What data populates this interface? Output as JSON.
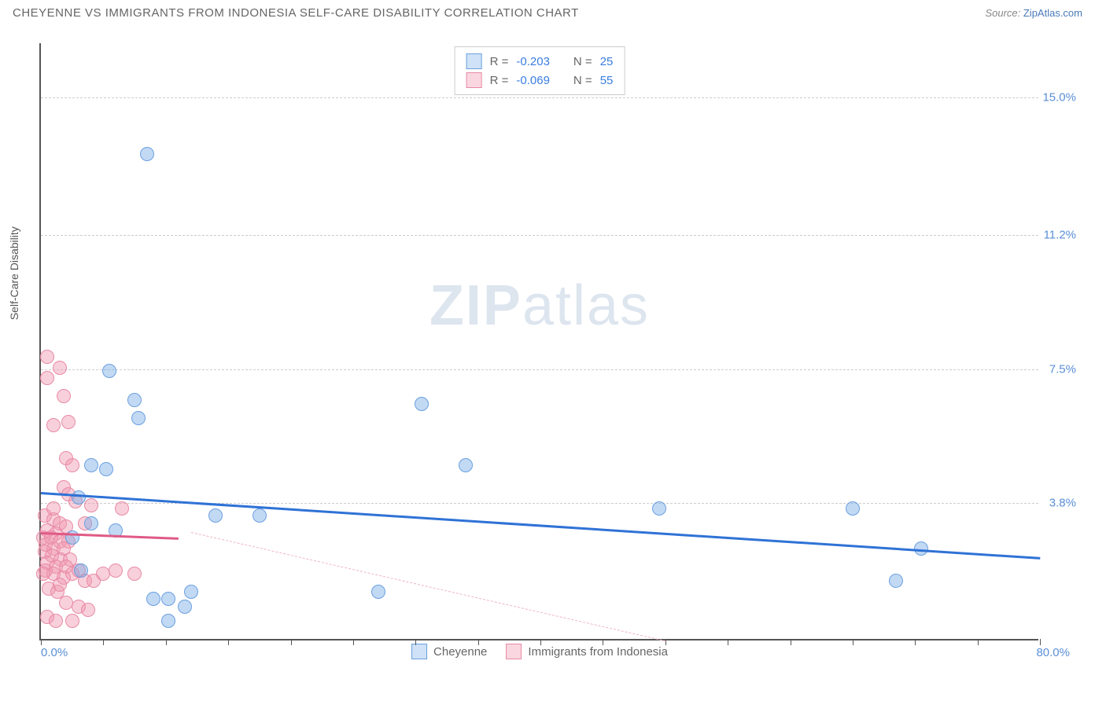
{
  "header": {
    "title": "CHEYENNE VS IMMIGRANTS FROM INDONESIA SELF-CARE DISABILITY CORRELATION CHART",
    "source_prefix": "Source: ",
    "source_link": "ZipAtlas.com"
  },
  "watermark": {
    "zip": "ZIP",
    "atlas": "atlas"
  },
  "chart": {
    "type": "scatter",
    "y_axis_label": "Self-Care Disability",
    "xlim": [
      0,
      80
    ],
    "ylim": [
      0,
      16.5
    ],
    "x_origin_label": "0.0%",
    "x_max_label": "80.0%",
    "x_ticks": [
      0,
      5,
      10,
      15,
      20,
      25,
      30,
      35,
      40,
      45,
      50,
      55,
      60,
      65,
      70,
      75,
      80
    ],
    "y_gridlines": [
      {
        "value": 3.8,
        "label": "3.8%"
      },
      {
        "value": 7.5,
        "label": "7.5%"
      },
      {
        "value": 11.2,
        "label": "11.2%"
      },
      {
        "value": 15.0,
        "label": "15.0%"
      }
    ],
    "background_color": "#ffffff",
    "grid_color": "#cccccc",
    "axis_color": "#555555",
    "tick_label_color": "#5a8fd6"
  },
  "series": {
    "cheyenne": {
      "label": "Cheyenne",
      "fill": "rgba(120,170,230,0.45)",
      "stroke": "#6aa0e0",
      "swatch_fill": "#cfe2f7",
      "swatch_border": "#6aa0e0",
      "R_label": "R = ",
      "R": "-0.203",
      "N_label": "N = ",
      "N": "25",
      "trend": {
        "x1": 0,
        "y1": 4.1,
        "x2": 80,
        "y2": 2.3,
        "color": "#2f72d6",
        "width": 3,
        "dashed": false
      },
      "trend_dash": {
        "x1": 12,
        "y1": 3.0,
        "x2": 50,
        "y2": 0.0,
        "color": "#f0b5c0",
        "width": 1,
        "dashed": true
      },
      "points": [
        {
          "x": 8.5,
          "y": 13.4
        },
        {
          "x": 5.5,
          "y": 7.4
        },
        {
          "x": 7.5,
          "y": 6.6
        },
        {
          "x": 7.8,
          "y": 6.1
        },
        {
          "x": 4.0,
          "y": 4.8
        },
        {
          "x": 5.2,
          "y": 4.7
        },
        {
          "x": 3.0,
          "y": 3.9
        },
        {
          "x": 4.0,
          "y": 3.2
        },
        {
          "x": 6.0,
          "y": 3.0
        },
        {
          "x": 14.0,
          "y": 3.4
        },
        {
          "x": 17.5,
          "y": 3.4
        },
        {
          "x": 30.5,
          "y": 6.5
        },
        {
          "x": 34.0,
          "y": 4.8
        },
        {
          "x": 27.0,
          "y": 1.3
        },
        {
          "x": 9.0,
          "y": 1.1
        },
        {
          "x": 10.2,
          "y": 1.1
        },
        {
          "x": 11.5,
          "y": 0.9
        },
        {
          "x": 10.2,
          "y": 0.5
        },
        {
          "x": 12.0,
          "y": 1.3
        },
        {
          "x": 3.2,
          "y": 1.9
        },
        {
          "x": 49.5,
          "y": 3.6
        },
        {
          "x": 65.0,
          "y": 3.6
        },
        {
          "x": 70.5,
          "y": 2.5
        },
        {
          "x": 68.5,
          "y": 1.6
        },
        {
          "x": 2.5,
          "y": 2.8
        }
      ]
    },
    "indonesia": {
      "label": "Immigrants from Indonesia",
      "fill": "rgba(240,150,175,0.45)",
      "stroke": "#e88aa5",
      "swatch_fill": "#fad7e0",
      "swatch_border": "#e88aa5",
      "R_label": "R = ",
      "R": "-0.069",
      "N_label": "N = ",
      "N": "55",
      "trend": {
        "x1": 0,
        "y1": 3.0,
        "x2": 11,
        "y2": 2.85,
        "color": "#e05a85",
        "width": 3,
        "dashed": false
      },
      "points": [
        {
          "x": 0.5,
          "y": 7.8
        },
        {
          "x": 1.5,
          "y": 7.5
        },
        {
          "x": 0.5,
          "y": 7.2
        },
        {
          "x": 1.8,
          "y": 6.7
        },
        {
          "x": 2.2,
          "y": 6.0
        },
        {
          "x": 1.0,
          "y": 5.9
        },
        {
          "x": 2.0,
          "y": 5.0
        },
        {
          "x": 2.5,
          "y": 4.8
        },
        {
          "x": 1.8,
          "y": 4.2
        },
        {
          "x": 2.2,
          "y": 4.0
        },
        {
          "x": 4.0,
          "y": 3.7
        },
        {
          "x": 6.5,
          "y": 3.6
        },
        {
          "x": 0.3,
          "y": 3.4
        },
        {
          "x": 1.0,
          "y": 3.3
        },
        {
          "x": 1.5,
          "y": 3.2
        },
        {
          "x": 2.0,
          "y": 3.1
        },
        {
          "x": 0.5,
          "y": 3.0
        },
        {
          "x": 1.2,
          "y": 2.9
        },
        {
          "x": 0.2,
          "y": 2.8
        },
        {
          "x": 0.8,
          "y": 2.8
        },
        {
          "x": 1.5,
          "y": 2.7
        },
        {
          "x": 2.2,
          "y": 2.7
        },
        {
          "x": 0.4,
          "y": 2.6
        },
        {
          "x": 1.0,
          "y": 2.5
        },
        {
          "x": 1.8,
          "y": 2.5
        },
        {
          "x": 0.3,
          "y": 2.4
        },
        {
          "x": 0.9,
          "y": 2.3
        },
        {
          "x": 1.6,
          "y": 2.2
        },
        {
          "x": 2.3,
          "y": 2.2
        },
        {
          "x": 0.5,
          "y": 2.1
        },
        {
          "x": 1.2,
          "y": 2.0
        },
        {
          "x": 2.0,
          "y": 2.0
        },
        {
          "x": 0.4,
          "y": 1.9
        },
        {
          "x": 1.0,
          "y": 1.8
        },
        {
          "x": 0.2,
          "y": 1.8
        },
        {
          "x": 1.8,
          "y": 1.7
        },
        {
          "x": 2.5,
          "y": 1.8
        },
        {
          "x": 3.0,
          "y": 1.9
        },
        {
          "x": 3.5,
          "y": 1.6
        },
        {
          "x": 4.2,
          "y": 1.6
        },
        {
          "x": 5.0,
          "y": 1.8
        },
        {
          "x": 6.0,
          "y": 1.9
        },
        {
          "x": 7.5,
          "y": 1.8
        },
        {
          "x": 0.6,
          "y": 1.4
        },
        {
          "x": 1.3,
          "y": 1.3
        },
        {
          "x": 2.0,
          "y": 1.0
        },
        {
          "x": 3.0,
          "y": 0.9
        },
        {
          "x": 3.8,
          "y": 0.8
        },
        {
          "x": 0.5,
          "y": 0.6
        },
        {
          "x": 1.2,
          "y": 0.5
        },
        {
          "x": 2.5,
          "y": 0.5
        },
        {
          "x": 1.0,
          "y": 3.6
        },
        {
          "x": 2.8,
          "y": 3.8
        },
        {
          "x": 3.5,
          "y": 3.2
        },
        {
          "x": 1.5,
          "y": 1.5
        }
      ]
    }
  }
}
